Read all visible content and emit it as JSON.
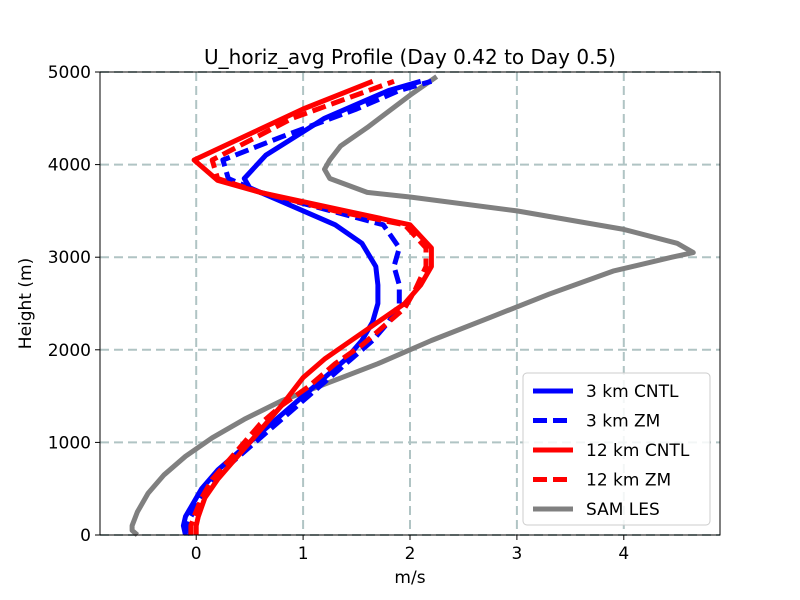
{
  "chart_data": {
    "type": "line",
    "title": "U_horiz_avg Profile (Day 0.42 to Day 0.5)",
    "xlabel": "m/s",
    "ylabel": "Height (m)",
    "xlim": [
      -0.9,
      4.9
    ],
    "ylim": [
      0,
      5000
    ],
    "xticks": [
      0,
      1,
      2,
      3,
      4
    ],
    "yticks": [
      0,
      1000,
      2000,
      3000,
      4000,
      5000
    ],
    "grid": true,
    "legend_position": "lower-right",
    "series": [
      {
        "name": "3 km CNTL",
        "color": "#0000ff",
        "style": "solid",
        "points": [
          [
            -0.1,
            0
          ],
          [
            -0.12,
            100
          ],
          [
            -0.1,
            200
          ],
          [
            -0.05,
            300
          ],
          [
            0.05,
            500
          ],
          [
            0.2,
            700
          ],
          [
            0.4,
            900
          ],
          [
            0.6,
            1100
          ],
          [
            0.8,
            1300
          ],
          [
            1.0,
            1500
          ],
          [
            1.2,
            1700
          ],
          [
            1.4,
            1900
          ],
          [
            1.55,
            2100
          ],
          [
            1.65,
            2300
          ],
          [
            1.7,
            2500
          ],
          [
            1.7,
            2700
          ],
          [
            1.68,
            2900
          ],
          [
            1.55,
            3150
          ],
          [
            1.3,
            3350
          ],
          [
            0.8,
            3600
          ],
          [
            0.5,
            3750
          ],
          [
            0.45,
            3850
          ],
          [
            0.65,
            4100
          ],
          [
            1.2,
            4500
          ],
          [
            1.8,
            4800
          ],
          [
            2.1,
            4900
          ]
        ]
      },
      {
        "name": "3 km ZM",
        "color": "#0000ff",
        "style": "dashed",
        "points": [
          [
            -0.05,
            0
          ],
          [
            -0.08,
            100
          ],
          [
            -0.05,
            200
          ],
          [
            0.0,
            300
          ],
          [
            0.1,
            500
          ],
          [
            0.25,
            700
          ],
          [
            0.45,
            900
          ],
          [
            0.65,
            1100
          ],
          [
            0.85,
            1300
          ],
          [
            1.05,
            1500
          ],
          [
            1.25,
            1700
          ],
          [
            1.45,
            1900
          ],
          [
            1.65,
            2100
          ],
          [
            1.8,
            2300
          ],
          [
            1.9,
            2500
          ],
          [
            1.9,
            2700
          ],
          [
            1.85,
            2900
          ],
          [
            1.9,
            3100
          ],
          [
            1.75,
            3350
          ],
          [
            1.1,
            3550
          ],
          [
            0.6,
            3700
          ],
          [
            0.3,
            3850
          ],
          [
            0.25,
            4050
          ],
          [
            0.8,
            4300
          ],
          [
            1.5,
            4600
          ],
          [
            1.9,
            4800
          ],
          [
            2.2,
            4900
          ]
        ]
      },
      {
        "name": "12 km CNTL",
        "color": "#ff0000",
        "style": "solid",
        "points": [
          [
            0.0,
            0
          ],
          [
            0.0,
            100
          ],
          [
            0.02,
            200
          ],
          [
            0.08,
            400
          ],
          [
            0.2,
            600
          ],
          [
            0.35,
            800
          ],
          [
            0.5,
            1000
          ],
          [
            0.65,
            1200
          ],
          [
            0.8,
            1400
          ],
          [
            1.0,
            1700
          ],
          [
            1.2,
            1900
          ],
          [
            1.45,
            2100
          ],
          [
            1.7,
            2300
          ],
          [
            1.95,
            2500
          ],
          [
            2.1,
            2700
          ],
          [
            2.2,
            2900
          ],
          [
            2.2,
            3100
          ],
          [
            2.0,
            3350
          ],
          [
            1.4,
            3500
          ],
          [
            0.6,
            3700
          ],
          [
            0.2,
            3830
          ],
          [
            -0.02,
            4050
          ],
          [
            1.0,
            4600
          ],
          [
            1.65,
            4900
          ]
        ]
      },
      {
        "name": "12 km ZM",
        "color": "#ff0000",
        "style": "dashed",
        "points": [
          [
            -0.05,
            0
          ],
          [
            -0.05,
            100
          ],
          [
            -0.02,
            200
          ],
          [
            0.05,
            400
          ],
          [
            0.15,
            600
          ],
          [
            0.3,
            800
          ],
          [
            0.45,
            1000
          ],
          [
            0.6,
            1200
          ],
          [
            0.8,
            1400
          ],
          [
            1.05,
            1600
          ],
          [
            1.3,
            1850
          ],
          [
            1.55,
            2050
          ],
          [
            1.75,
            2250
          ],
          [
            1.95,
            2450
          ],
          [
            2.05,
            2650
          ],
          [
            2.15,
            2900
          ],
          [
            2.15,
            3100
          ],
          [
            1.95,
            3350
          ],
          [
            1.3,
            3500
          ],
          [
            0.6,
            3700
          ],
          [
            0.2,
            3850
          ],
          [
            0.15,
            4050
          ],
          [
            0.9,
            4500
          ],
          [
            1.85,
            4900
          ]
        ]
      },
      {
        "name": "SAM LES",
        "color": "#808080",
        "style": "solid",
        "points": [
          [
            -0.55,
            0
          ],
          [
            -0.6,
            50
          ],
          [
            -0.6,
            100
          ],
          [
            -0.55,
            250
          ],
          [
            -0.45,
            450
          ],
          [
            -0.3,
            650
          ],
          [
            -0.1,
            850
          ],
          [
            0.15,
            1050
          ],
          [
            0.45,
            1250
          ],
          [
            0.8,
            1450
          ],
          [
            1.25,
            1650
          ],
          [
            1.7,
            1850
          ],
          [
            2.2,
            2100
          ],
          [
            2.75,
            2350
          ],
          [
            3.3,
            2600
          ],
          [
            3.9,
            2850
          ],
          [
            4.45,
            3000
          ],
          [
            4.65,
            3050
          ],
          [
            4.5,
            3150
          ],
          [
            4.0,
            3300
          ],
          [
            3.0,
            3500
          ],
          [
            2.0,
            3650
          ],
          [
            1.6,
            3700
          ],
          [
            1.25,
            3850
          ],
          [
            1.2,
            3950
          ],
          [
            1.25,
            4050
          ],
          [
            1.35,
            4200
          ],
          [
            1.6,
            4400
          ],
          [
            2.0,
            4750
          ],
          [
            2.25,
            4950
          ]
        ]
      }
    ]
  }
}
